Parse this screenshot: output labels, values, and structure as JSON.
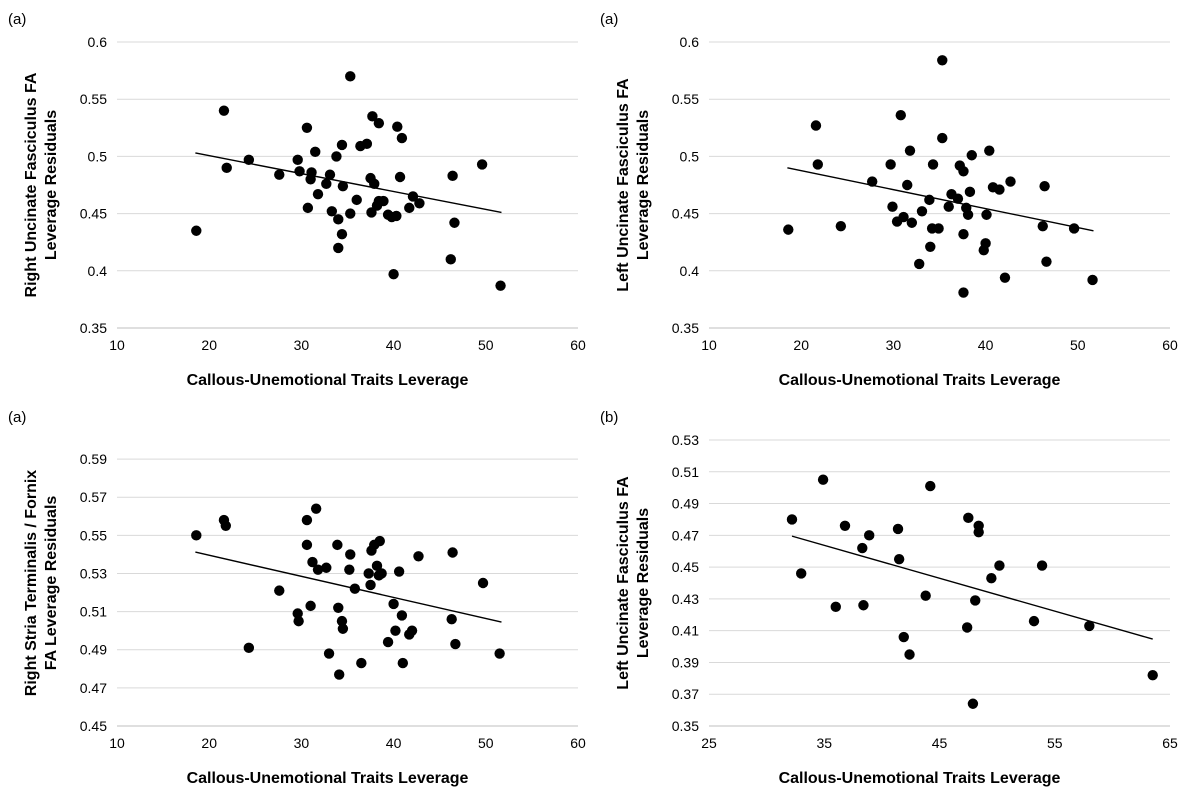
{
  "chart_data": [
    {
      "type": "scatter",
      "panel_label": "(a)",
      "xlabel": "Callous-Unemotional Traits Leverage",
      "ylabel_lines": [
        "Right Uncinate Fasciculus FA",
        "Leverage Residuals"
      ],
      "xlim": [
        10,
        60
      ],
      "xticks": [
        10,
        20,
        30,
        40,
        50,
        60
      ],
      "ylim": [
        0.35,
        0.6
      ],
      "yticks": [
        "0.35",
        "0.4",
        "0.45",
        "0.5",
        "0.55",
        "0.6"
      ],
      "grid": true,
      "trendline": {
        "x": [
          18.5,
          51.7
        ],
        "y": [
          0.503,
          0.451
        ]
      },
      "points": [
        [
          18.6,
          0.435
        ],
        [
          21.6,
          0.54
        ],
        [
          21.9,
          0.49
        ],
        [
          24.3,
          0.497
        ],
        [
          27.6,
          0.484
        ],
        [
          29.6,
          0.497
        ],
        [
          29.8,
          0.487
        ],
        [
          30.6,
          0.525
        ],
        [
          30.7,
          0.455
        ],
        [
          31.0,
          0.48
        ],
        [
          31.1,
          0.486
        ],
        [
          31.5,
          0.504
        ],
        [
          31.8,
          0.467
        ],
        [
          32.7,
          0.476
        ],
        [
          33.1,
          0.484
        ],
        [
          33.3,
          0.452
        ],
        [
          33.8,
          0.5
        ],
        [
          34.0,
          0.42
        ],
        [
          34.0,
          0.445
        ],
        [
          34.4,
          0.432
        ],
        [
          34.4,
          0.51
        ],
        [
          34.5,
          0.474
        ],
        [
          35.3,
          0.45
        ],
        [
          35.3,
          0.57
        ],
        [
          36.0,
          0.462
        ],
        [
          36.4,
          0.509
        ],
        [
          37.1,
          0.511
        ],
        [
          37.5,
          0.481
        ],
        [
          37.6,
          0.451
        ],
        [
          37.7,
          0.535
        ],
        [
          37.9,
          0.476
        ],
        [
          38.2,
          0.457
        ],
        [
          38.4,
          0.461
        ],
        [
          38.4,
          0.529
        ],
        [
          38.9,
          0.461
        ],
        [
          39.4,
          0.449
        ],
        [
          39.8,
          0.447
        ],
        [
          40.0,
          0.397
        ],
        [
          40.3,
          0.448
        ],
        [
          40.4,
          0.526
        ],
        [
          40.7,
          0.482
        ],
        [
          40.9,
          0.516
        ],
        [
          41.7,
          0.455
        ],
        [
          42.1,
          0.465
        ],
        [
          42.8,
          0.459
        ],
        [
          46.2,
          0.41
        ],
        [
          46.4,
          0.483
        ],
        [
          46.6,
          0.442
        ],
        [
          49.6,
          0.493
        ],
        [
          51.6,
          0.387
        ]
      ]
    },
    {
      "type": "scatter",
      "panel_label": "(a)",
      "xlabel": "Callous-Unemotional Traits Leverage",
      "ylabel_lines": [
        "Left Uncinate Fasciculus FA",
        "Leverage Residuals"
      ],
      "xlim": [
        10,
        60
      ],
      "xticks": [
        10,
        20,
        30,
        40,
        50,
        60
      ],
      "ylim": [
        0.35,
        0.6
      ],
      "yticks": [
        "0.35",
        "0.4",
        "0.45",
        "0.5",
        "0.55",
        "0.6"
      ],
      "grid": true,
      "trendline": {
        "x": [
          18.5,
          51.7
        ],
        "y": [
          0.49,
          0.435
        ]
      },
      "points": [
        [
          18.6,
          0.436
        ],
        [
          21.6,
          0.527
        ],
        [
          21.8,
          0.493
        ],
        [
          24.3,
          0.439
        ],
        [
          27.7,
          0.478
        ],
        [
          29.7,
          0.493
        ],
        [
          29.9,
          0.456
        ],
        [
          30.4,
          0.443
        ],
        [
          30.8,
          0.536
        ],
        [
          31.1,
          0.447
        ],
        [
          31.5,
          0.475
        ],
        [
          31.8,
          0.505
        ],
        [
          32.0,
          0.442
        ],
        [
          32.8,
          0.406
        ],
        [
          33.1,
          0.452
        ],
        [
          33.9,
          0.462
        ],
        [
          34.0,
          0.421
        ],
        [
          34.2,
          0.437
        ],
        [
          34.3,
          0.493
        ],
        [
          34.9,
          0.437
        ],
        [
          35.3,
          0.516
        ],
        [
          35.3,
          0.584
        ],
        [
          36.0,
          0.456
        ],
        [
          36.3,
          0.467
        ],
        [
          37.0,
          0.463
        ],
        [
          37.2,
          0.492
        ],
        [
          37.6,
          0.487
        ],
        [
          37.6,
          0.432
        ],
        [
          37.6,
          0.381
        ],
        [
          37.9,
          0.455
        ],
        [
          38.1,
          0.449
        ],
        [
          38.3,
          0.469
        ],
        [
          38.5,
          0.501
        ],
        [
          39.8,
          0.418
        ],
        [
          40.0,
          0.424
        ],
        [
          40.1,
          0.449
        ],
        [
          40.4,
          0.505
        ],
        [
          40.8,
          0.473
        ],
        [
          41.5,
          0.471
        ],
        [
          42.1,
          0.394
        ],
        [
          42.7,
          0.478
        ],
        [
          46.2,
          0.439
        ],
        [
          46.4,
          0.474
        ],
        [
          46.6,
          0.408
        ],
        [
          49.6,
          0.437
        ],
        [
          51.6,
          0.392
        ]
      ]
    },
    {
      "type": "scatter",
      "panel_label": "(a)",
      "xlabel": "Callous-Unemotional Traits Leverage",
      "ylabel_lines": [
        "Right Stria Terminalis / Fornix",
        "FA Leverage Residuals"
      ],
      "xlim": [
        10,
        60
      ],
      "xticks": [
        10,
        20,
        30,
        40,
        50,
        60
      ],
      "ylim": [
        0.45,
        0.6
      ],
      "yticks": [
        "0.45",
        "0.47",
        "0.49",
        "0.51",
        "0.53",
        "0.55",
        "0.57",
        "0.59"
      ],
      "grid": true,
      "trendline": {
        "x": [
          18.5,
          51.7
        ],
        "y": [
          0.5412,
          0.5045
        ]
      },
      "points": [
        [
          18.6,
          0.55
        ],
        [
          21.6,
          0.558
        ],
        [
          21.8,
          0.555
        ],
        [
          24.3,
          0.491
        ],
        [
          27.6,
          0.521
        ],
        [
          29.6,
          0.509
        ],
        [
          29.7,
          0.505
        ],
        [
          30.6,
          0.558
        ],
        [
          30.6,
          0.545
        ],
        [
          31.0,
          0.513
        ],
        [
          31.2,
          0.536
        ],
        [
          31.6,
          0.564
        ],
        [
          31.8,
          0.532
        ],
        [
          32.7,
          0.533
        ],
        [
          33.0,
          0.488
        ],
        [
          33.9,
          0.545
        ],
        [
          34.0,
          0.512
        ],
        [
          34.1,
          0.477
        ],
        [
          34.4,
          0.505
        ],
        [
          34.5,
          0.501
        ],
        [
          35.2,
          0.532
        ],
        [
          35.3,
          0.54
        ],
        [
          35.8,
          0.522
        ],
        [
          36.5,
          0.483
        ],
        [
          37.3,
          0.53
        ],
        [
          37.5,
          0.524
        ],
        [
          37.6,
          0.542
        ],
        [
          37.9,
          0.545
        ],
        [
          38.2,
          0.534
        ],
        [
          38.4,
          0.529
        ],
        [
          38.5,
          0.547
        ],
        [
          38.7,
          0.53
        ],
        [
          39.4,
          0.494
        ],
        [
          40.0,
          0.514
        ],
        [
          40.2,
          0.5
        ],
        [
          40.6,
          0.531
        ],
        [
          40.9,
          0.508
        ],
        [
          41.0,
          0.483
        ],
        [
          41.7,
          0.498
        ],
        [
          42.0,
          0.5
        ],
        [
          42.7,
          0.539
        ],
        [
          46.3,
          0.506
        ],
        [
          46.4,
          0.541
        ],
        [
          46.7,
          0.493
        ],
        [
          49.7,
          0.525
        ],
        [
          51.5,
          0.488
        ]
      ]
    },
    {
      "type": "scatter",
      "panel_label": "(b)",
      "xlabel": "Callous-Unemotional Traits Leverage",
      "ylabel_lines": [
        "Left Uncinate Fasciculus FA",
        "Leverage Residuals"
      ],
      "xlim": [
        25,
        65
      ],
      "xticks": [
        25,
        35,
        45,
        55,
        65
      ],
      "ylim": [
        0.35,
        0.53
      ],
      "yticks": [
        "0.35",
        "0.37",
        "0.39",
        "0.41",
        "0.43",
        "0.45",
        "0.47",
        "0.49",
        "0.51",
        "0.53"
      ],
      "grid": true,
      "trendline": {
        "x": [
          32.2,
          63.5
        ],
        "y": [
          0.4695,
          0.4047
        ]
      },
      "points": [
        [
          32.2,
          0.48
        ],
        [
          33.0,
          0.446
        ],
        [
          34.9,
          0.505
        ],
        [
          36.0,
          0.425
        ],
        [
          36.8,
          0.476
        ],
        [
          38.3,
          0.462
        ],
        [
          38.4,
          0.426
        ],
        [
          38.9,
          0.47
        ],
        [
          41.4,
          0.474
        ],
        [
          41.5,
          0.455
        ],
        [
          41.9,
          0.406
        ],
        [
          42.4,
          0.395
        ],
        [
          43.8,
          0.432
        ],
        [
          44.2,
          0.501
        ],
        [
          47.4,
          0.412
        ],
        [
          47.5,
          0.481
        ],
        [
          47.9,
          0.364
        ],
        [
          48.1,
          0.429
        ],
        [
          48.4,
          0.476
        ],
        [
          48.4,
          0.472
        ],
        [
          49.5,
          0.443
        ],
        [
          50.2,
          0.451
        ],
        [
          53.2,
          0.416
        ],
        [
          53.9,
          0.451
        ],
        [
          58.0,
          0.413
        ],
        [
          63.5,
          0.382
        ]
      ]
    }
  ]
}
